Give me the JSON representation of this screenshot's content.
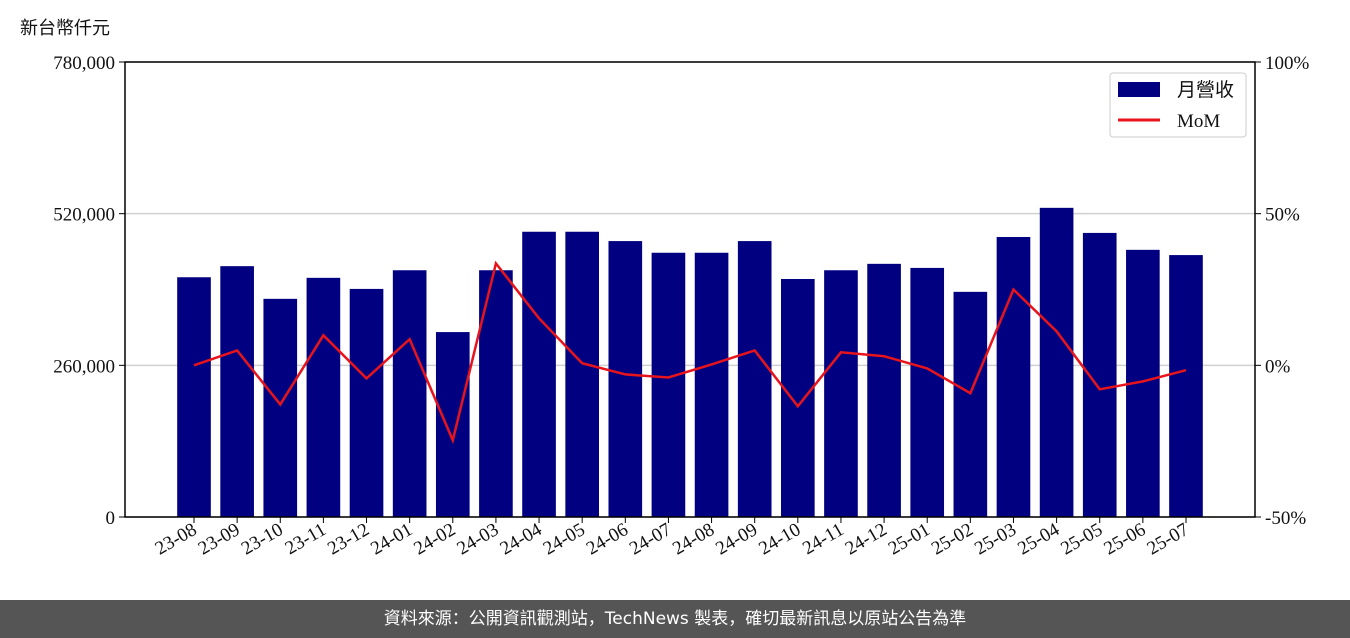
{
  "chart_data": {
    "type": "bar-line",
    "y_label": "新台幣仟元",
    "categories": [
      "23-08",
      "23-09",
      "23-10",
      "23-11",
      "23-12",
      "24-01",
      "24-02",
      "24-03",
      "24-04",
      "24-05",
      "24-06",
      "24-07",
      "24-08",
      "24-09",
      "24-10",
      "24-11",
      "24-12",
      "25-01",
      "25-02",
      "25-03",
      "25-04",
      "25-05",
      "25-06",
      "25-07"
    ],
    "series": [
      {
        "name": "月營收",
        "type": "bar",
        "color": "#000080",
        "values": [
          411000,
          430000,
          374000,
          410000,
          391000,
          423000,
          317000,
          423000,
          489000,
          489000,
          473000,
          453000,
          453000,
          473000,
          408000,
          423000,
          434000,
          427000,
          386000,
          480000,
          530000,
          487000,
          458000,
          449000
        ]
      },
      {
        "name": "MoM",
        "type": "line",
        "axis": "y2",
        "color": "#e8141c",
        "values": [
          0,
          4.9,
          -12.9,
          9.9,
          -4.3,
          8.6,
          -24.7,
          33.6,
          15.5,
          0.7,
          -3,
          -4,
          0.3,
          4.9,
          -13.5,
          4.3,
          3,
          -1,
          -9.2,
          25,
          11.2,
          -7.9,
          -5.3,
          -1.6
        ]
      }
    ],
    "ylim": [
      0,
      780000
    ],
    "yticks": [
      0,
      {
        "value": 260000,
        "label": "260,000"
      },
      {
        "value": 520000,
        "label": "520,000"
      },
      {
        "value": 780000,
        "label": "780,000"
      }
    ],
    "y2lim": [
      -50,
      100
    ],
    "y2ticks": [
      {
        "value": -50,
        "label": "-50%"
      },
      {
        "value": 0,
        "label": "0%"
      },
      {
        "value": 50,
        "label": "50%"
      },
      {
        "value": 100,
        "label": "100%"
      }
    ],
    "grid": true,
    "legend": "upper right",
    "source": "資料來源：公開資訊觀測站，TechNews 製表，確切最新訊息以原站公告為準"
  }
}
